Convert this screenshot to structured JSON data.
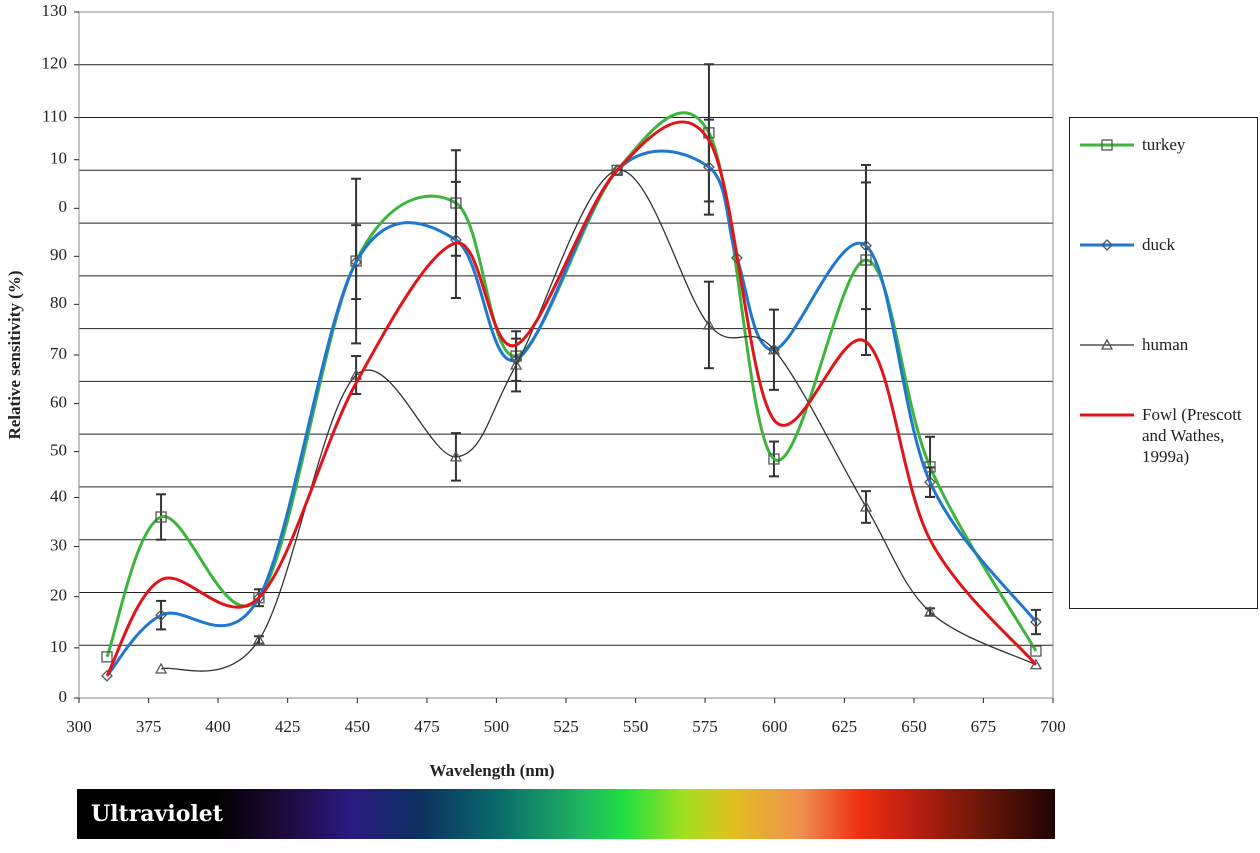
{
  "chart_data": {
    "type": "line",
    "xlabel": "Wavelength (nm)",
    "ylabel": "Relative sensitivity (%)",
    "xlim": [
      300,
      700
    ],
    "ylim": [
      0,
      130
    ],
    "xticks": [
      300,
      {
        "value": 328.6,
        "label": "375"
      },
      {
        "value": 357.1,
        "label": "400"
      },
      {
        "value": 385.7,
        "label": "425"
      },
      {
        "value": 414.3,
        "label": "450"
      },
      {
        "value": 442.9,
        "label": "475"
      },
      {
        "value": 471.4,
        "label": "500"
      },
      {
        "value": 500,
        "label": "525"
      },
      {
        "value": 528.6,
        "label": "550"
      },
      {
        "value": 557.1,
        "label": "575"
      },
      {
        "value": 585.7,
        "label": "600"
      },
      {
        "value": 614.3,
        "label": "625"
      },
      {
        "value": 642.9,
        "label": "650"
      },
      {
        "value": 671.4,
        "label": "675"
      },
      700
    ],
    "yticks": [
      0,
      {
        "value": 9.5,
        "label": "10"
      },
      {
        "value": 19.2,
        "label": "20"
      },
      {
        "value": 28.7,
        "label": "30"
      },
      {
        "value": 38,
        "label": "40"
      },
      {
        "value": 46.7,
        "label": "50"
      },
      {
        "value": 55.8,
        "label": "60"
      },
      {
        "value": 65,
        "label": "70"
      },
      {
        "value": 74.6,
        "label": "80"
      },
      {
        "value": 83.7,
        "label": "90"
      },
      {
        "value": 92.8,
        "label": "0"
      },
      {
        "value": 102,
        "label": "10"
      },
      110,
      120,
      130
    ],
    "gridlines": [
      10,
      20,
      30,
      40,
      50,
      60,
      70,
      80,
      90,
      100,
      110,
      120,
      130
    ],
    "grid": true,
    "legend": "right",
    "band_label": "Ultraviolet",
    "series": [
      {
        "name": "turkey",
        "color": "#3db53d",
        "marker": "square",
        "x": [
          311.5,
          333.7,
          373.9,
          413.8,
          454.8,
          479.5,
          521,
          558.7,
          585.4,
          623.2,
          649.5,
          693
        ],
        "values": [
          7.8,
          34.3,
          19,
          82.8,
          93.8,
          64.8,
          100,
          107.1,
          45.3,
          83,
          43.8,
          8.9
        ],
        "errors": [
          null,
          4.3,
          null,
          15.6,
          10,
          4.7,
          null,
          13,
          3.3,
          18,
          5.7,
          null
        ]
      },
      {
        "name": "duck",
        "color": "#1f77d0",
        "marker": "diamond",
        "x": [
          311.5,
          333.7,
          373.9,
          413.8,
          454.8,
          479.5,
          521,
          558.7,
          570.2,
          585.4,
          623.2,
          649.5,
          693
        ],
        "values": [
          4.2,
          15.7,
          19,
          82.6,
          86.8,
          64.1,
          100,
          100.6,
          83.4,
          66,
          85.7,
          40.9,
          14.4
        ],
        "errors": [
          null,
          2.7,
          1.6,
          7,
          11,
          null,
          null,
          9,
          null,
          null,
          12,
          2.8,
          2.3
        ]
      },
      {
        "name": "human",
        "color": "#333333",
        "marker": "triangle",
        "x": [
          333.7,
          373.9,
          413.8,
          454.8,
          479.5,
          521,
          558.7,
          585.4,
          623.2,
          649.5,
          693
        ],
        "values": [
          5.5,
          11,
          61.2,
          45.7,
          63.1,
          100,
          70.7,
          66,
          36.2,
          16.3,
          6.3
        ],
        "errors": [
          null,
          0.7,
          3.6,
          4.5,
          5,
          null,
          8.2,
          7.6,
          3,
          0.7,
          null
        ]
      },
      {
        "name": "Fowl (Prescott and Wathes, 1999a)",
        "color": "#e0151a",
        "marker": "none",
        "x": [
          311.5,
          333.7,
          373.9,
          413.8,
          454.8,
          479.5,
          521,
          558.7,
          585.4,
          623.2,
          649.5,
          693
        ],
        "values": [
          4.2,
          22.4,
          19,
          59.7,
          86.2,
          66.9,
          100,
          105.7,
          52.7,
          67.5,
          30,
          6.3
        ]
      }
    ]
  }
}
